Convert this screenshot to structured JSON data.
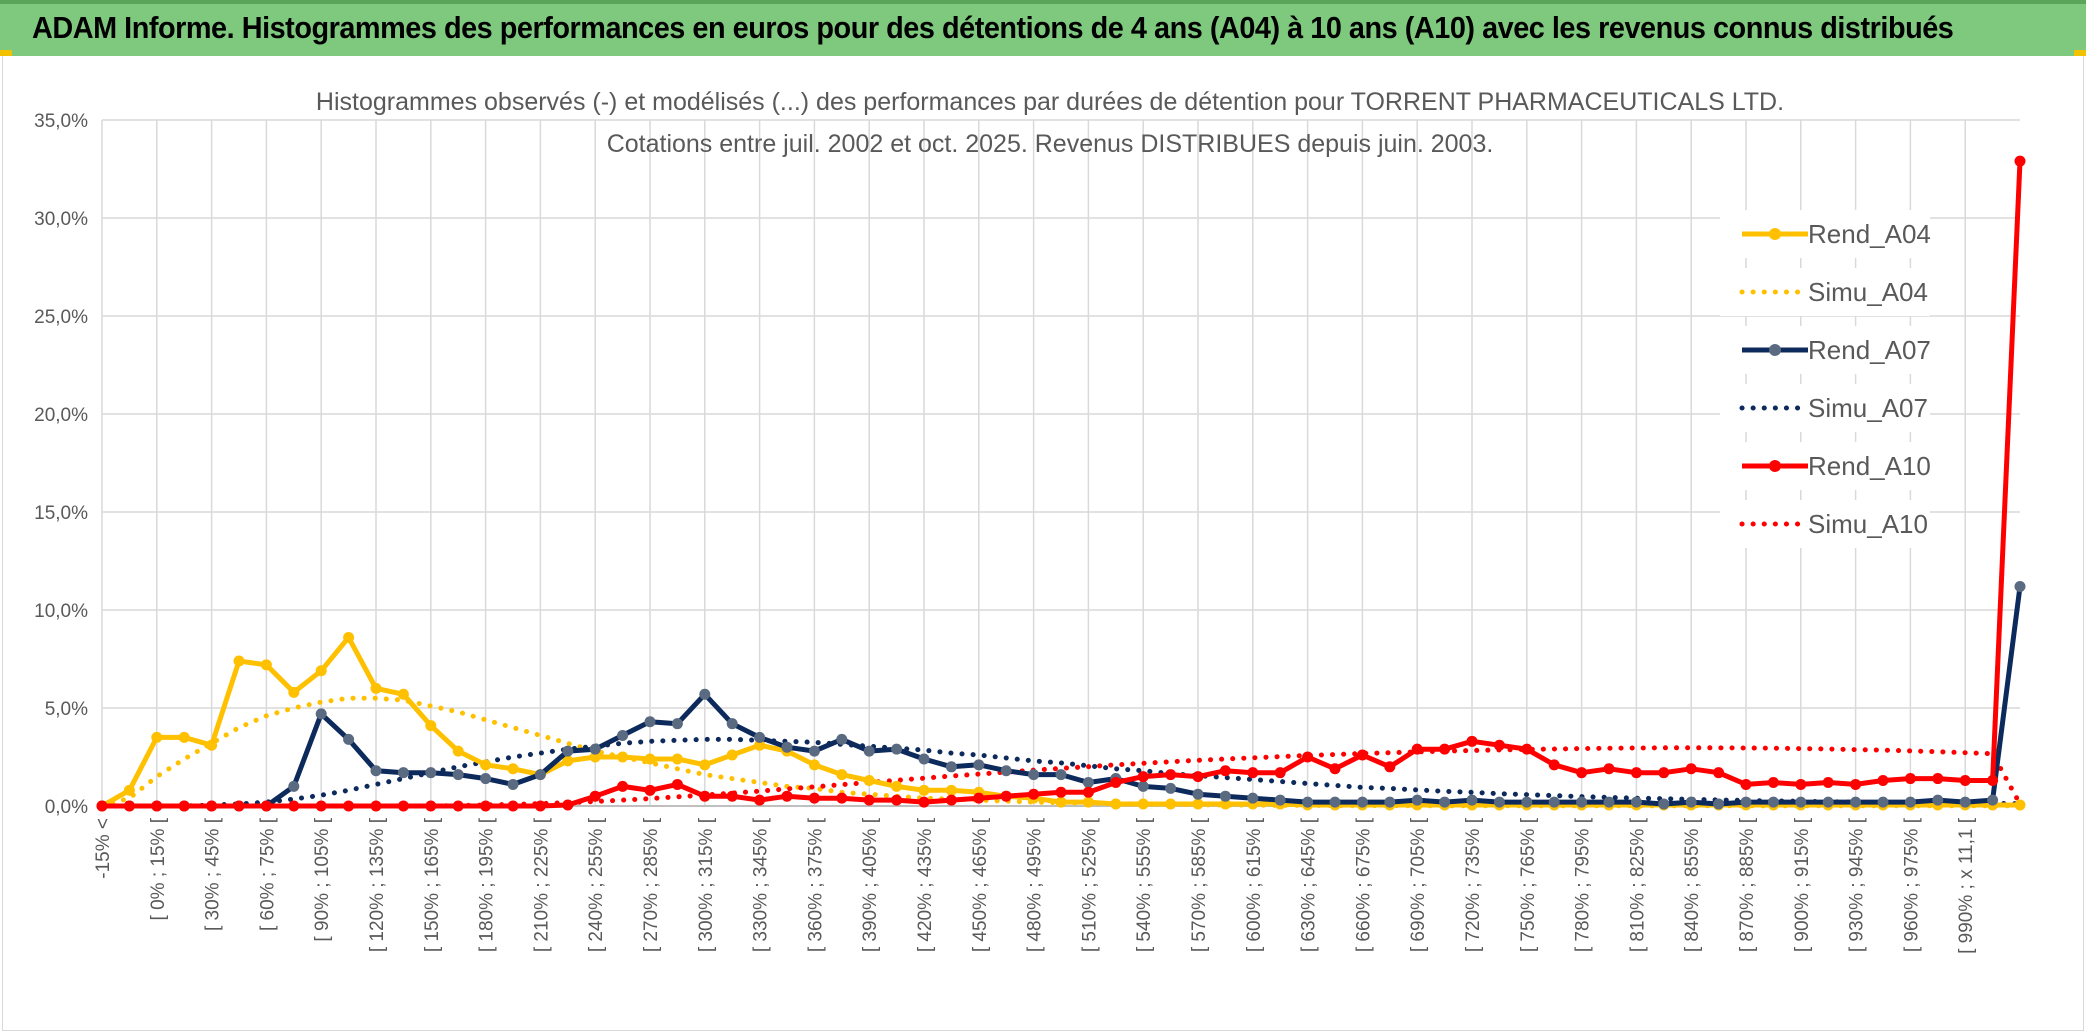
{
  "header": {
    "title": "ADAM Informe. Histogrammes des performances en euros pour des détentions de 4 ans (A04) à 10 ans (A10) avec les revenus connus distribués"
  },
  "colors": {
    "A04": "#ffc000",
    "A07": "#0d2a5c",
    "A07_marker": "#5a6a80",
    "A10": "#ff0000",
    "header_bg": "#7fc97f"
  },
  "chart_data": {
    "type": "line",
    "title": "Histogrammes observés (-) et modélisés (...) des performances par durées de détention pour TORRENT PHARMACEUTICALS LTD.",
    "subtitle": "Cotations entre juil. 2002 et oct. 2025. Revenus DISTRIBUES depuis juin. 2003.",
    "yticks": [
      "0,0%",
      "5,0%",
      "10,0%",
      "15,0%",
      "20,0%",
      "25,0%",
      "30,0%",
      "35,0%"
    ],
    "ylim": [
      0,
      35
    ],
    "grid": true,
    "legend_position": "right",
    "x_labels": [
      "-15% <",
      "[ 0% ; 15% [",
      "[ 30% ; 45% [",
      "[ 60% ; 75% [",
      "[ 90% ; 105% [",
      "[ 120% ; 135% [",
      "[ 150% ; 165% [",
      "[ 180% ; 195% [",
      "[ 210% ; 225% [",
      "[ 240% ; 255% [",
      "[ 270% ; 285% [",
      "[ 300% ; 315% [",
      "[ 330% ; 345% [",
      "[ 360% ; 375% [",
      "[ 390% ; 405% [",
      "[ 420% ; 435% [",
      "[ 450% ; 465% [",
      "[ 480% ; 495% [",
      "[ 510% ; 525% [",
      "[ 540% ; 555% [",
      "[ 570% ; 585% [",
      "[ 600% ; 615% [",
      "[ 630% ; 645% [",
      "[ 660% ; 675% [",
      "[ 690% ; 705% [",
      "[ 720% ; 735% [",
      "[ 750% ; 765% [",
      "[ 780% ; 795% [",
      "[ 810% ; 825% [",
      "[ 840% ; 855% [",
      "[ 870% ; 885% [",
      "[ 900% ; 915% [",
      "[ 930% ; 945% [",
      "[ 960% ; 975% [",
      "[ 990% ; x 11,1 ["
    ],
    "series": [
      {
        "name": "Rend_A04",
        "style": "solid",
        "values": [
          0,
          0.8,
          3.5,
          3.5,
          3.1,
          7.4,
          7.2,
          5.8,
          6.9,
          8.6,
          6.0,
          5.7,
          4.1,
          2.8,
          2.1,
          1.9,
          1.6,
          2.3,
          2.5,
          2.5,
          2.4,
          2.4,
          2.1,
          2.6,
          3.1,
          2.8,
          2.1,
          1.6,
          1.3,
          1.0,
          0.8,
          0.8,
          0.7,
          0.5,
          0.4,
          0.2,
          0.2,
          0.1,
          0.1,
          0.1,
          0.1,
          0.1,
          0.1,
          0.1,
          0.05,
          0.05,
          0.05,
          0.05,
          0.05,
          0.05,
          0.05,
          0.05,
          0.05,
          0.05,
          0.05,
          0.05,
          0.05,
          0.05,
          0.05,
          0.05,
          0.05,
          0.05,
          0.05,
          0.05,
          0.05,
          0.05,
          0.05,
          0.05,
          0.05,
          0.05,
          0.05
        ]
      },
      {
        "name": "Simu_A04",
        "style": "dotted",
        "values": [
          0,
          0.4,
          1.5,
          2.4,
          3.2,
          4.0,
          4.6,
          5.0,
          5.3,
          5.5,
          5.5,
          5.4,
          5.1,
          4.8,
          4.4,
          4.0,
          3.6,
          3.2,
          2.8,
          2.5,
          2.2,
          1.9,
          1.6,
          1.4,
          1.2,
          1.0,
          0.9,
          0.7,
          0.6,
          0.5,
          0.4,
          0.35,
          0.3,
          0.25,
          0.2,
          0.17,
          0.14,
          0.12,
          0.1,
          0.08,
          0.06,
          0.05,
          0.04,
          0.03,
          0.03,
          0.02,
          0.02,
          0.02,
          0.01,
          0.01,
          0.01,
          0.01,
          0.01,
          0.01,
          0.01,
          0.01,
          0.01,
          0.01,
          0.01,
          0.01,
          0.01,
          0.01,
          0.01,
          0.01,
          0.01,
          0.01,
          0.01,
          0.01,
          0.01,
          0.01,
          0.01
        ]
      },
      {
        "name": "Rend_A07",
        "style": "solid",
        "values": [
          0,
          0,
          0,
          0,
          0,
          0,
          0,
          1.0,
          4.7,
          3.4,
          1.8,
          1.7,
          1.7,
          1.6,
          1.4,
          1.1,
          1.6,
          2.8,
          2.9,
          3.6,
          4.3,
          4.2,
          5.7,
          4.2,
          3.5,
          3.0,
          2.8,
          3.4,
          2.8,
          2.9,
          2.4,
          2.0,
          2.1,
          1.8,
          1.6,
          1.6,
          1.2,
          1.4,
          1.0,
          0.9,
          0.6,
          0.5,
          0.4,
          0.3,
          0.2,
          0.2,
          0.2,
          0.2,
          0.3,
          0.2,
          0.3,
          0.2,
          0.2,
          0.2,
          0.2,
          0.2,
          0.2,
          0.1,
          0.2,
          0.1,
          0.2,
          0.2,
          0.2,
          0.2,
          0.2,
          0.2,
          0.2,
          0.3,
          0.2,
          0.3,
          11.2
        ]
      },
      {
        "name": "Simu_A07",
        "style": "dotted",
        "values": [
          0,
          0,
          0,
          0,
          0.05,
          0.1,
          0.2,
          0.35,
          0.55,
          0.8,
          1.1,
          1.4,
          1.7,
          2.0,
          2.25,
          2.5,
          2.7,
          2.9,
          3.05,
          3.2,
          3.3,
          3.35,
          3.4,
          3.4,
          3.35,
          3.3,
          3.25,
          3.15,
          3.05,
          2.95,
          2.85,
          2.7,
          2.6,
          2.45,
          2.3,
          2.2,
          2.05,
          1.9,
          1.8,
          1.65,
          1.55,
          1.45,
          1.35,
          1.25,
          1.15,
          1.05,
          0.95,
          0.9,
          0.82,
          0.75,
          0.7,
          0.63,
          0.58,
          0.53,
          0.48,
          0.44,
          0.4,
          0.37,
          0.34,
          0.31,
          0.28,
          0.26,
          0.24,
          0.22,
          0.2,
          0.18,
          0.17,
          0.15,
          0.14,
          0.13,
          0.12
        ]
      },
      {
        "name": "Rend_A10",
        "style": "solid",
        "values": [
          0,
          0,
          0,
          0,
          0,
          0,
          0,
          0,
          0,
          0,
          0,
          0,
          0,
          0,
          0,
          0,
          0,
          0.05,
          0.5,
          1.0,
          0.8,
          1.1,
          0.5,
          0.5,
          0.3,
          0.5,
          0.4,
          0.4,
          0.3,
          0.3,
          0.2,
          0.3,
          0.4,
          0.5,
          0.6,
          0.7,
          0.7,
          1.2,
          1.5,
          1.6,
          1.5,
          1.8,
          1.7,
          1.7,
          2.5,
          1.9,
          2.6,
          2.0,
          2.9,
          2.9,
          3.3,
          3.1,
          2.9,
          2.1,
          1.7,
          1.9,
          1.7,
          1.7,
          1.9,
          1.7,
          1.1,
          1.2,
          1.1,
          1.2,
          1.1,
          1.3,
          1.4,
          1.4,
          1.3,
          1.3,
          32.9
        ]
      },
      {
        "name": "Simu_A10",
        "style": "dotted",
        "values": [
          0,
          0,
          0,
          0,
          0,
          0,
          0,
          0,
          0,
          0,
          0,
          0,
          0,
          0.02,
          0.05,
          0.08,
          0.12,
          0.17,
          0.23,
          0.3,
          0.38,
          0.47,
          0.56,
          0.66,
          0.76,
          0.87,
          0.98,
          1.09,
          1.2,
          1.31,
          1.42,
          1.53,
          1.63,
          1.73,
          1.83,
          1.92,
          2.01,
          2.1,
          2.18,
          2.26,
          2.33,
          2.4,
          2.46,
          2.52,
          2.58,
          2.63,
          2.68,
          2.72,
          2.76,
          2.8,
          2.83,
          2.86,
          2.89,
          2.91,
          2.93,
          2.95,
          2.96,
          2.97,
          2.97,
          2.97,
          2.96,
          2.95,
          2.93,
          2.91,
          2.88,
          2.85,
          2.81,
          2.77,
          2.72,
          2.67,
          0.1
        ]
      }
    ]
  }
}
